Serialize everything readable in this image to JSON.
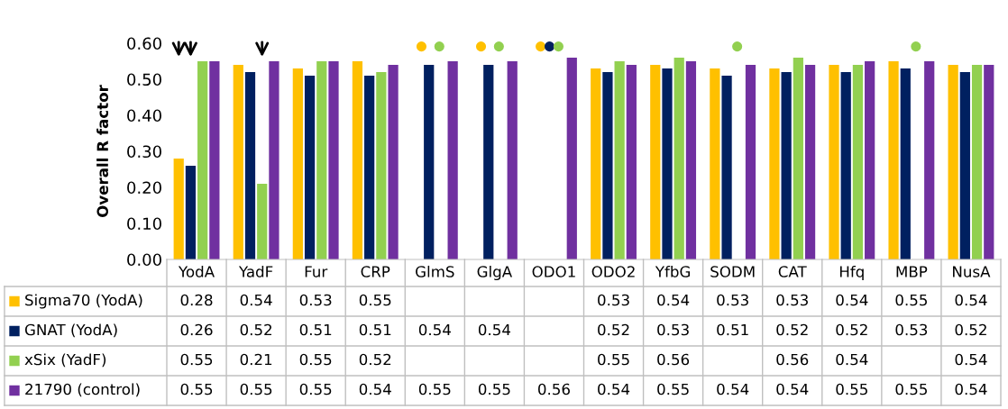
{
  "chart_data": {
    "type": "bar",
    "ylabel": "Overall R factor",
    "categories": [
      "YodA",
      "YadF",
      "Fur",
      "CRP",
      "GlmS",
      "GlgA",
      "ODO1",
      "ODO2",
      "YfbG",
      "SODM",
      "CAT",
      "Hfq",
      "MBP",
      "NusA"
    ],
    "series": [
      {
        "name": "Sigma70 (YodA)",
        "color": "#ffc000",
        "values": [
          0.28,
          0.54,
          0.53,
          0.55,
          null,
          null,
          null,
          0.53,
          0.54,
          0.53,
          0.53,
          0.54,
          0.55,
          0.54
        ]
      },
      {
        "name": "GNAT (YodA)",
        "color": "#002060",
        "values": [
          0.26,
          0.52,
          0.51,
          0.51,
          0.54,
          0.54,
          null,
          0.52,
          0.53,
          0.51,
          0.52,
          0.52,
          0.53,
          0.52
        ]
      },
      {
        "name": "xSix (YadF)",
        "color": "#92d050",
        "values": [
          0.55,
          0.21,
          0.55,
          0.52,
          null,
          null,
          null,
          0.55,
          0.56,
          null,
          0.56,
          0.54,
          null,
          0.54
        ]
      },
      {
        "name": "21790 (control)",
        "color": "#7030a0",
        "values": [
          0.55,
          0.55,
          0.55,
          0.54,
          0.55,
          0.55,
          0.56,
          0.54,
          0.55,
          0.54,
          0.54,
          0.55,
          0.55,
          0.54
        ]
      }
    ],
    "ylim": [
      0,
      0.6
    ],
    "yticks": [
      {
        "value": 0,
        "label": "0.00"
      },
      {
        "value": 0.1,
        "label": "0.10"
      },
      {
        "value": 0.2,
        "label": "0.20"
      },
      {
        "value": 0.3,
        "label": "0.30"
      },
      {
        "value": 0.4,
        "label": "0.40"
      },
      {
        "value": 0.5,
        "label": "0.50"
      },
      {
        "value": 0.6,
        "label": "0.60"
      }
    ],
    "grid": false,
    "data_labels": true,
    "legend": "left"
  }
}
